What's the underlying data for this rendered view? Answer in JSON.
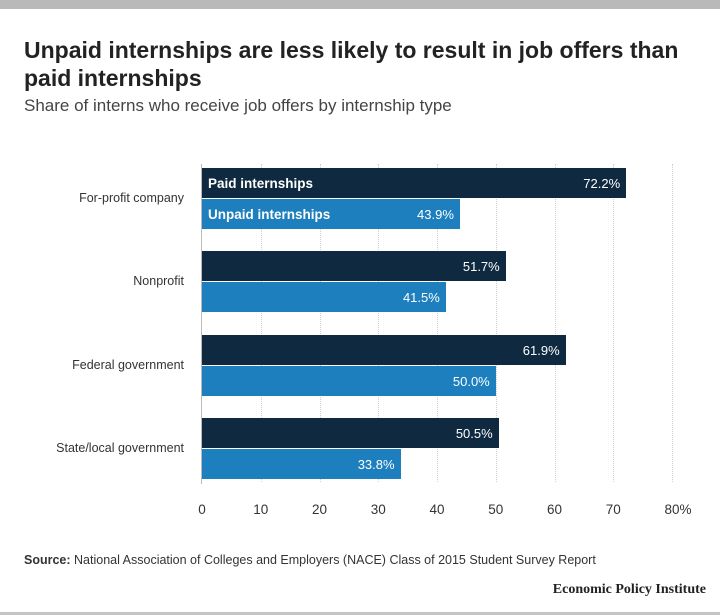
{
  "header": {
    "title": "Unpaid internships are less likely to result in job offers than paid internships",
    "subtitle": "Share of interns who receive job offers by internship type"
  },
  "legend": {
    "paid": "Paid internships",
    "unpaid": "Unpaid internships"
  },
  "colors": {
    "paid": "#0f2a40",
    "unpaid": "#1d7fbd"
  },
  "rows": [
    {
      "category": "For-profit company",
      "paid": 72.2,
      "paid_label": "72.2%",
      "unpaid": 43.9,
      "unpaid_label": "43.9%"
    },
    {
      "category": "Nonprofit",
      "paid": 51.7,
      "paid_label": "51.7%",
      "unpaid": 41.5,
      "unpaid_label": "41.5%"
    },
    {
      "category": "Federal government",
      "paid": 61.9,
      "paid_label": "61.9%",
      "unpaid": 50.0,
      "unpaid_label": "50.0%"
    },
    {
      "category": "State/local government",
      "paid": 50.5,
      "paid_label": "50.5%",
      "unpaid": 33.8,
      "unpaid_label": "33.8%"
    }
  ],
  "axis": {
    "ticks": [
      "0",
      "10",
      "20",
      "30",
      "40",
      "50",
      "60",
      "70",
      "80%"
    ]
  },
  "footer": {
    "source_label": "Source:",
    "source_text": " National Association of Colleges and Employers (NACE) Class of 2015 Student Survey Report",
    "brand": "Economic Policy Institute"
  },
  "chart_data": {
    "type": "bar",
    "orientation": "horizontal",
    "title": "Unpaid internships are less likely to result in job offers than paid internships",
    "subtitle": "Share of interns who receive job offers by internship type",
    "categories": [
      "For-profit company",
      "Nonprofit",
      "Federal government",
      "State/local government"
    ],
    "series": [
      {
        "name": "Paid internships",
        "values": [
          72.2,
          51.7,
          61.9,
          50.5
        ],
        "color": "#0f2a40"
      },
      {
        "name": "Unpaid internships",
        "values": [
          43.9,
          41.5,
          50.0,
          33.8
        ],
        "color": "#1d7fbd"
      }
    ],
    "xlabel": "",
    "ylabel": "",
    "xlim": [
      0,
      80
    ],
    "xticks": [
      0,
      10,
      20,
      30,
      40,
      50,
      60,
      70,
      80
    ],
    "xtick_labels": [
      "0",
      "10",
      "20",
      "30",
      "40",
      "50",
      "60",
      "70",
      "80%"
    ],
    "grid": true,
    "legend_position": "inline in first bar group",
    "source": "National Association of Colleges and Employers (NACE) Class of 2015 Student Survey Report",
    "credit": "Economic Policy Institute"
  }
}
